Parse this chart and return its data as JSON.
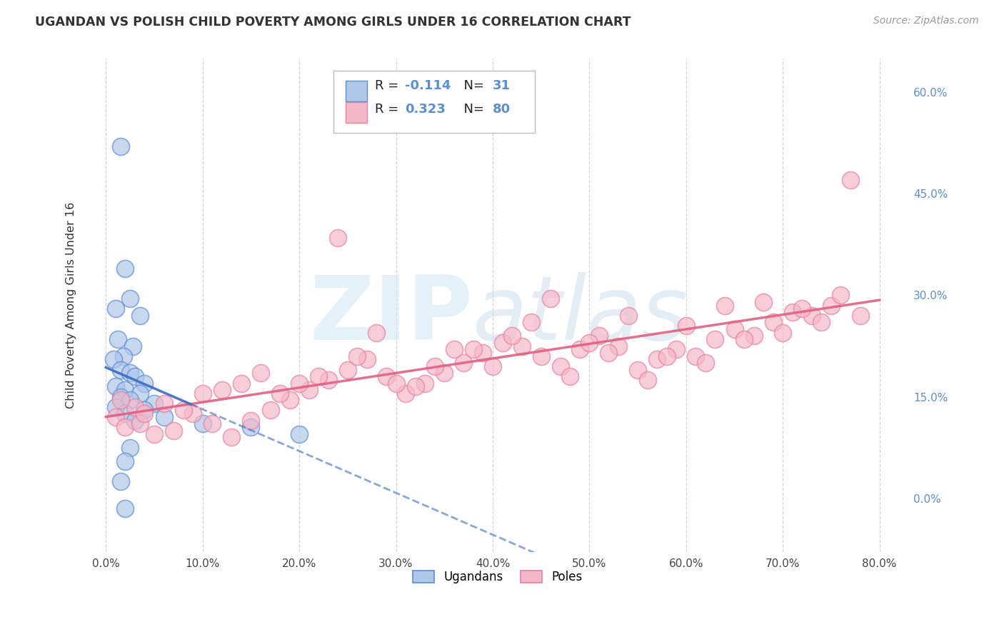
{
  "title": "UGANDAN VS POLISH CHILD POVERTY AMONG GIRLS UNDER 16 CORRELATION CHART",
  "source": "Source: ZipAtlas.com",
  "ylabel": "Child Poverty Among Girls Under 16",
  "xlim": [
    -2.0,
    83.0
  ],
  "ylim": [
    -8.0,
    65.0
  ],
  "x_ticks": [
    0,
    10,
    20,
    30,
    40,
    50,
    60,
    70,
    80
  ],
  "y_ticks_right": [
    0,
    15,
    30,
    45,
    60
  ],
  "ugandan_color": "#aec6e8",
  "ugandan_edge": "#5b8ed6",
  "polish_color": "#f5b8ca",
  "polish_edge": "#e8829e",
  "ugandan_R": -0.114,
  "ugandan_N": 31,
  "polish_R": 0.323,
  "polish_N": 80,
  "grid_color": "#cccccc",
  "title_color": "#333333",
  "right_axis_color": "#5b8ed6",
  "trendline_ug_color": "#3b6bc4",
  "trendline_po_color": "#e06080",
  "background_color": "#ffffff",
  "watermark_zip_color": "#cce0f0",
  "watermark_atlas_color": "#c0d8e8",
  "ugandan_x": [
    1.5,
    2.0,
    2.5,
    1.0,
    3.5,
    1.2,
    2.8,
    1.8,
    0.8,
    1.5,
    2.5,
    3.0,
    4.0,
    1.0,
    2.0,
    3.5,
    1.5,
    2.5,
    5.0,
    1.0,
    4.0,
    2.0,
    6.0,
    3.0,
    10.0,
    15.0,
    20.0,
    2.5,
    2.0,
    1.5,
    2.0
  ],
  "ugandan_y": [
    52.0,
    34.0,
    29.5,
    28.0,
    27.0,
    23.5,
    22.5,
    21.0,
    20.5,
    19.0,
    18.5,
    18.0,
    17.0,
    16.5,
    16.0,
    15.5,
    15.0,
    14.5,
    14.0,
    13.5,
    13.0,
    12.5,
    12.0,
    11.5,
    11.0,
    10.5,
    9.5,
    7.5,
    5.5,
    2.5,
    -1.5
  ],
  "polish_x": [
    1.0,
    2.0,
    3.5,
    5.0,
    7.0,
    9.0,
    11.0,
    13.0,
    15.0,
    17.0,
    19.0,
    21.0,
    23.0,
    25.0,
    27.0,
    29.0,
    31.0,
    33.0,
    35.0,
    37.0,
    39.0,
    41.0,
    43.0,
    45.0,
    47.0,
    49.0,
    51.0,
    53.0,
    55.0,
    57.0,
    59.0,
    61.0,
    63.0,
    65.0,
    67.0,
    69.0,
    71.0,
    73.0,
    75.0,
    77.0,
    3.0,
    6.0,
    10.0,
    14.0,
    18.0,
    22.0,
    26.0,
    30.0,
    34.0,
    38.0,
    42.0,
    46.0,
    50.0,
    54.0,
    58.0,
    62.0,
    66.0,
    70.0,
    74.0,
    1.5,
    4.0,
    8.0,
    12.0,
    16.0,
    20.0,
    24.0,
    28.0,
    32.0,
    36.0,
    40.0,
    44.0,
    48.0,
    52.0,
    56.0,
    60.0,
    64.0,
    68.0,
    72.0,
    76.0,
    78.0
  ],
  "polish_y": [
    12.0,
    10.5,
    11.0,
    9.5,
    10.0,
    12.5,
    11.0,
    9.0,
    11.5,
    13.0,
    14.5,
    16.0,
    17.5,
    19.0,
    20.5,
    18.0,
    15.5,
    17.0,
    18.5,
    20.0,
    21.5,
    23.0,
    22.5,
    21.0,
    19.5,
    22.0,
    24.0,
    22.5,
    19.0,
    20.5,
    22.0,
    21.0,
    23.5,
    25.0,
    24.0,
    26.0,
    27.5,
    27.0,
    28.5,
    47.0,
    13.5,
    14.0,
    15.5,
    17.0,
    15.5,
    18.0,
    21.0,
    17.0,
    19.5,
    22.0,
    24.0,
    29.5,
    23.0,
    27.0,
    21.0,
    20.0,
    23.5,
    24.5,
    26.0,
    14.5,
    12.5,
    13.0,
    16.0,
    18.5,
    17.0,
    38.5,
    24.5,
    16.5,
    22.0,
    19.5,
    26.0,
    18.0,
    21.5,
    17.5,
    25.5,
    28.5,
    29.0,
    28.0,
    30.0,
    27.0
  ]
}
